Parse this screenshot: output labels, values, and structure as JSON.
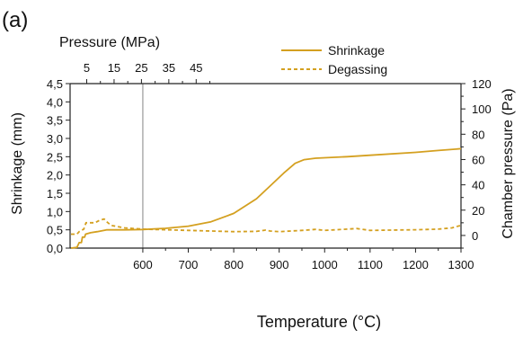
{
  "panel_label": "(a)",
  "chart_data": {
    "type": "line",
    "x_axis": {
      "label": "Temperature (°C)",
      "range": [
        440,
        1300
      ],
      "tick_values": [
        600,
        700,
        800,
        900,
        1000,
        1100,
        1200,
        1300
      ],
      "tick_labels": [
        "600",
        "700",
        "800",
        "900",
        "1000",
        "1100",
        "1200",
        "1300"
      ]
    },
    "x2_axis": {
      "label": "Pressure (MPa)",
      "note": "compressed pressure scale covering the region left of the 600 °C line",
      "tick_values": [
        5,
        15,
        25,
        35,
        45
      ],
      "tick_labels": [
        "5",
        "15",
        "25",
        "35",
        "45"
      ]
    },
    "y_axis": {
      "label": "Shrinkage (mm)",
      "range": [
        0,
        4.5
      ],
      "tick_values": [
        0,
        0.5,
        1.0,
        1.5,
        2.0,
        2.5,
        3.0,
        3.5,
        4.0,
        4.5
      ],
      "tick_labels": [
        "0,0",
        "0,5",
        "1,0",
        "1,5",
        "2,0",
        "2,5",
        "3,0",
        "3,5",
        "4,0",
        "4,5"
      ]
    },
    "y2_axis": {
      "label": "Chamber pressure (Pa)",
      "range": [
        -10,
        120
      ],
      "tick_values": [
        0,
        20,
        40,
        60,
        80,
        100,
        120
      ],
      "tick_labels": [
        "0",
        "20",
        "40",
        "60",
        "80",
        "100",
        "120"
      ]
    },
    "reference_line_x": 600,
    "legend": {
      "placement": "top-right",
      "entries": [
        {
          "name": "Shrinkage",
          "style": "solid"
        },
        {
          "name": "Degassing",
          "style": "dashed"
        }
      ]
    },
    "series": [
      {
        "name": "Shrinkage",
        "axis": "left",
        "color": "#d4a020",
        "style": "solid",
        "points": [
          [
            442,
            0.0
          ],
          [
            455,
            0.02
          ],
          [
            460,
            0.15
          ],
          [
            465,
            0.15
          ],
          [
            467,
            0.3
          ],
          [
            472,
            0.3
          ],
          [
            474,
            0.38
          ],
          [
            485,
            0.42
          ],
          [
            500,
            0.45
          ],
          [
            520,
            0.5
          ],
          [
            560,
            0.5
          ],
          [
            600,
            0.51
          ],
          [
            650,
            0.54
          ],
          [
            700,
            0.6
          ],
          [
            750,
            0.72
          ],
          [
            800,
            0.95
          ],
          [
            850,
            1.35
          ],
          [
            880,
            1.7
          ],
          [
            910,
            2.05
          ],
          [
            935,
            2.32
          ],
          [
            955,
            2.42
          ],
          [
            980,
            2.46
          ],
          [
            1050,
            2.5
          ],
          [
            1100,
            2.54
          ],
          [
            1200,
            2.62
          ],
          [
            1250,
            2.67
          ],
          [
            1300,
            2.72
          ]
        ]
      },
      {
        "name": "Degassing",
        "axis": "right",
        "color": "#d4a020",
        "style": "dashed",
        "points": [
          [
            442,
            1
          ],
          [
            455,
            1
          ],
          [
            460,
            3
          ],
          [
            470,
            5
          ],
          [
            475,
            10
          ],
          [
            495,
            10
          ],
          [
            505,
            12
          ],
          [
            515,
            13
          ],
          [
            520,
            11
          ],
          [
            530,
            8
          ],
          [
            560,
            6
          ],
          [
            600,
            5
          ],
          [
            700,
            4
          ],
          [
            800,
            3
          ],
          [
            850,
            3.2
          ],
          [
            870,
            4.2
          ],
          [
            880,
            3.5
          ],
          [
            900,
            3
          ],
          [
            950,
            4
          ],
          [
            980,
            4.8
          ],
          [
            1000,
            4
          ],
          [
            1050,
            5
          ],
          [
            1070,
            5.5
          ],
          [
            1100,
            4
          ],
          [
            1200,
            4.5
          ],
          [
            1250,
            5
          ],
          [
            1280,
            6
          ],
          [
            1300,
            8
          ]
        ]
      }
    ]
  }
}
